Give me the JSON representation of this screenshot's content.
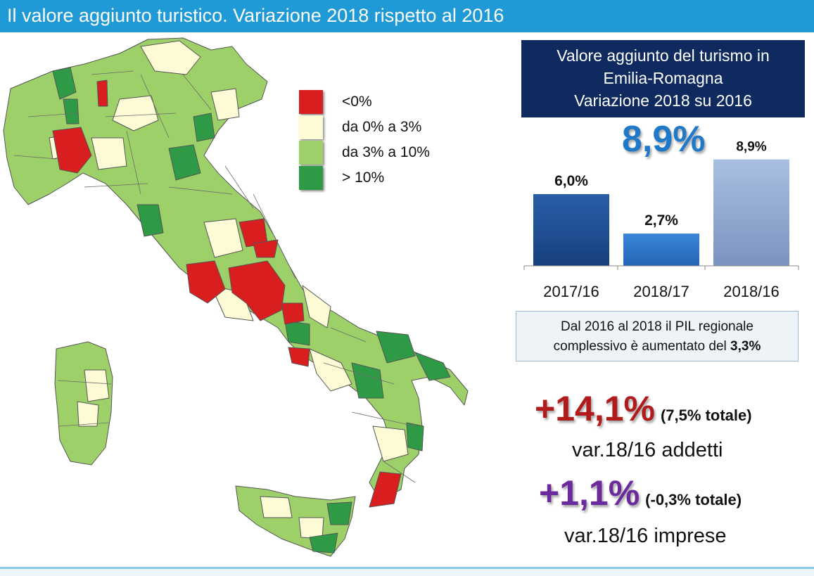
{
  "header": {
    "title": "Il valore aggiunto turistico. Variazione 2018 rispetto al 2016"
  },
  "legend": {
    "items": [
      {
        "label": "<0%",
        "color": "#d81e1e"
      },
      {
        "label": "da 0% a 3%",
        "color": "#fdfbd6"
      },
      {
        "label": "da 3% a 10%",
        "color": "#9ed06a"
      },
      {
        "label": "> 10%",
        "color": "#2e9a46"
      }
    ]
  },
  "panel": {
    "title_lines": [
      "Valore aggiunto del turismo in",
      "Emilia-Romagna",
      "Variazione 2018 su 2016"
    ],
    "highlight": "8,9%"
  },
  "chart_data": {
    "type": "bar",
    "categories": [
      "2017/16",
      "2018/17",
      "2018/16"
    ],
    "values": [
      6.0,
      2.7,
      8.9
    ],
    "data_labels": [
      "6,0%",
      "2,7%",
      "8,9%"
    ],
    "colors": [
      "#1f4f94",
      "#2c74c8",
      "#8fa8d0"
    ],
    "title": "Valore aggiunto del turismo in Emilia-Romagna Variazione 2018 su 2016",
    "ylim": [
      0,
      10
    ],
    "grid": false
  },
  "pil": {
    "line1": "Dal 2016 al 2018 il PIL regionale",
    "line2_prefix": "complessivo è  aumentato del",
    "line2_value": "3,3%"
  },
  "stats": {
    "addetti": {
      "value": "+14,1%",
      "total": "(7,5% totale)",
      "label": "var.18/16 addetti"
    },
    "imprese": {
      "value": "+1,1%",
      "total": "(-0,3% totale)",
      "label": "var.18/16 imprese"
    }
  }
}
